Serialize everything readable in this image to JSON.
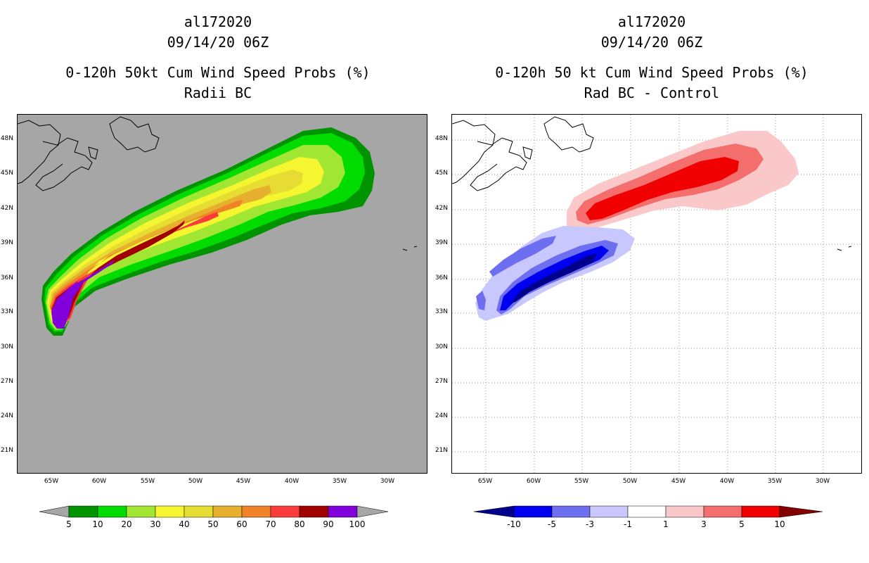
{
  "left": {
    "title_lines": [
      "al172020",
      "09/14/20 06Z",
      "0-120h 50kt Cum Wind Speed Probs (%)",
      "Radii BC"
    ],
    "background_color": "#a6a6a6",
    "colorbar": {
      "labels": [
        "5",
        "10",
        "20",
        "30",
        "40",
        "50",
        "60",
        "70",
        "80",
        "90",
        "100"
      ],
      "colors": [
        "#009300",
        "#00dc00",
        "#a0e632",
        "#f5f530",
        "#e6dc32",
        "#e6af2d",
        "#f08228",
        "#fa3c3c",
        "#a00000",
        "#8200dc"
      ],
      "end_color": "#a6a6a6"
    }
  },
  "right": {
    "title_lines": [
      "al172020",
      "09/14/20 06Z",
      "0-120h 50 kt Cum Wind Speed Probs (%)",
      "Rad BC - Control"
    ],
    "background_color": "#ffffff",
    "colorbar": {
      "labels": [
        "-10",
        "-5",
        "-3",
        "-1",
        "1",
        "3",
        "5",
        "10"
      ],
      "colors": [
        "#0000f0",
        "#6e6ef0",
        "#c8c8ff",
        "#ffffff",
        "#fac8c8",
        "#f56e6e",
        "#f00000"
      ],
      "left_end_color": "#00008c",
      "right_end_color": "#820000"
    }
  },
  "map": {
    "lat_labels": [
      "48N",
      "45N",
      "42N",
      "39N",
      "36N",
      "33N",
      "30N",
      "27N",
      "24N",
      "21N"
    ],
    "lon_labels": [
      "65W",
      "60W",
      "55W",
      "50W",
      "45W",
      "40W",
      "35W",
      "30W"
    ]
  }
}
